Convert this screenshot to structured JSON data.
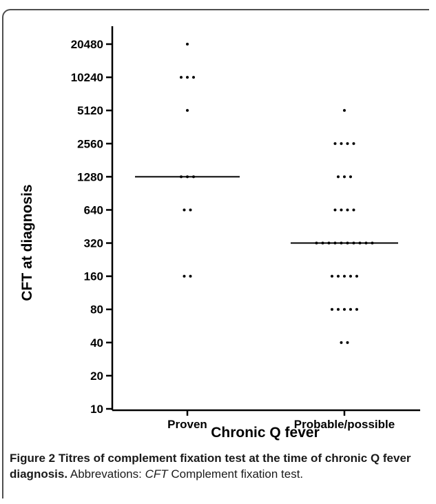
{
  "caption": {
    "label": "Figure 2",
    "title": "Titres of complement fixation test at the time of chronic Q fever diagnosis.",
    "abbrev_prefix": "Abbrevations:",
    "abbrev_term": "CFT",
    "abbrev_def": "Complement fixation test."
  },
  "chart_data": {
    "type": "scatter",
    "xlabel": "Chronic Q fever",
    "ylabel": "CFT at diagnosis",
    "y_scale": "log2",
    "ylim": [
      10,
      20480
    ],
    "yticks": [
      10,
      20,
      40,
      80,
      160,
      320,
      640,
      1280,
      2560,
      5120,
      10240,
      20480
    ],
    "categories": [
      "Proven",
      "Probable/possible"
    ],
    "groups": [
      {
        "name": "Proven",
        "points": [
          {
            "y": 20480,
            "n": 1
          },
          {
            "y": 10240,
            "n": 3
          },
          {
            "y": 5120,
            "n": 1
          },
          {
            "y": 1280,
            "n": 3
          },
          {
            "y": 640,
            "n": 2
          },
          {
            "y": 160,
            "n": 2
          }
        ],
        "median": 1280
      },
      {
        "name": "Probable/possible",
        "points": [
          {
            "y": 5120,
            "n": 1
          },
          {
            "y": 2560,
            "n": 4
          },
          {
            "y": 1280,
            "n": 3
          },
          {
            "y": 640,
            "n": 4
          },
          {
            "y": 320,
            "n": 10
          },
          {
            "y": 160,
            "n": 5
          },
          {
            "y": 80,
            "n": 5
          },
          {
            "y": 40,
            "n": 2
          }
        ],
        "median": 320
      }
    ]
  }
}
